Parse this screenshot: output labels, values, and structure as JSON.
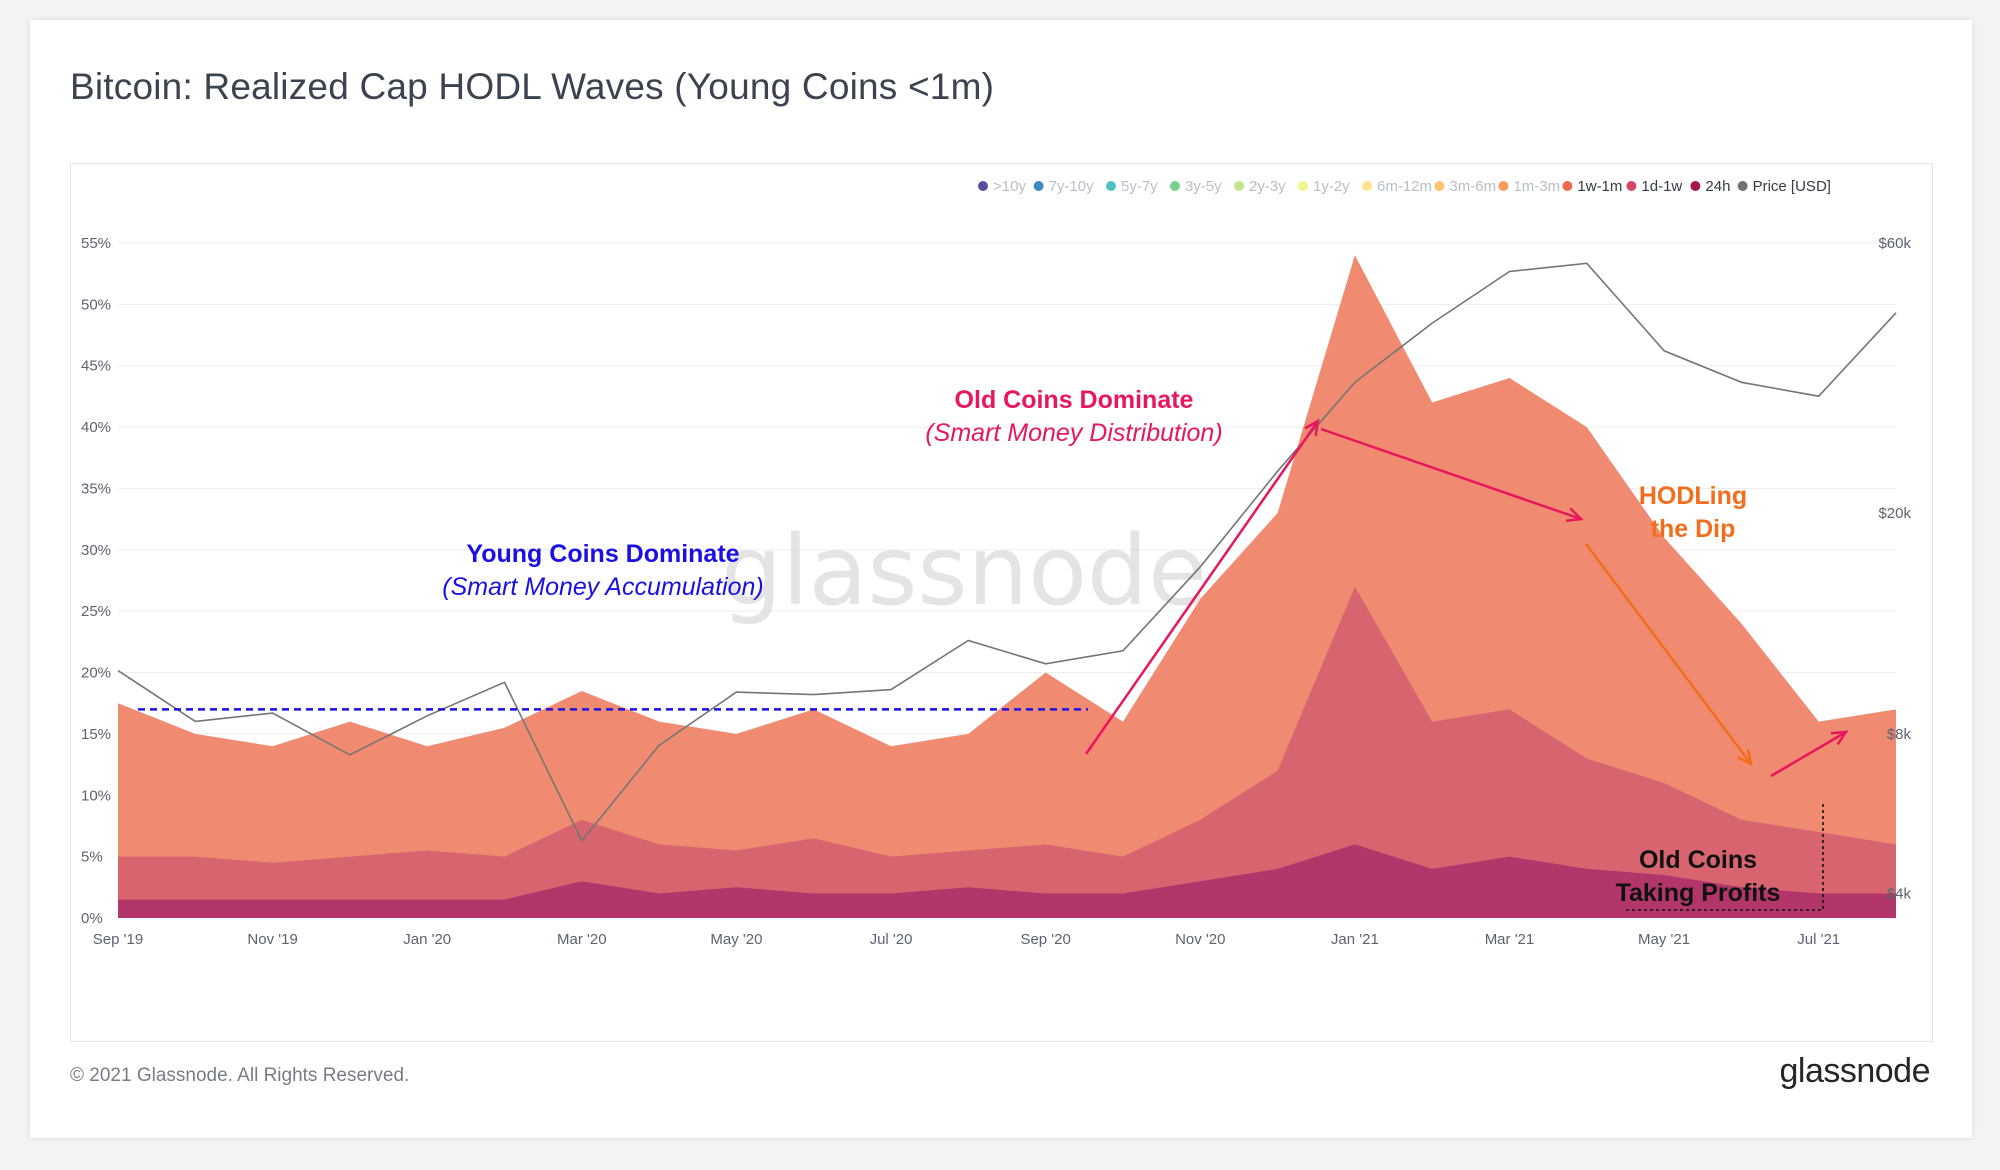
{
  "title": "Bitcoin: Realized Cap HODL Waves (Young Coins <1m)",
  "footer": {
    "copyright": "© 2021 Glassnode. All Rights Reserved.",
    "logo": "glassnode"
  },
  "watermark": "glassnode",
  "chart_data": {
    "type": "area",
    "x": [
      "2019-09",
      "2019-10",
      "2019-11",
      "2019-12",
      "2020-01",
      "2020-02",
      "2020-03",
      "2020-04",
      "2020-05",
      "2020-06",
      "2020-07",
      "2020-08",
      "2020-09",
      "2020-10",
      "2020-11",
      "2020-12",
      "2021-01",
      "2021-02",
      "2021-03",
      "2021-04",
      "2021-05",
      "2021-06",
      "2021-07",
      "2021-08"
    ],
    "xticks": [
      "Sep '19",
      "Nov '19",
      "Jan '20",
      "Mar '20",
      "May '20",
      "Jul '20",
      "Sep '20",
      "Nov '20",
      "Jan '21",
      "Mar '21",
      "May '21",
      "Jul '21"
    ],
    "yticks_left": [
      "0%",
      "5%",
      "10%",
      "15%",
      "20%",
      "25%",
      "30%",
      "35%",
      "40%",
      "45%",
      "50%",
      "55%"
    ],
    "yticks_right": [
      "$4k",
      "$8k",
      "$20k",
      "$60k"
    ],
    "ylim": [
      0,
      55
    ],
    "yscale_right": "log",
    "legend_position": "top-right",
    "legend": [
      {
        "name": ">10y",
        "color": "#5b4ea0",
        "faded": true
      },
      {
        "name": "7y-10y",
        "color": "#3b8bc2",
        "faded": true
      },
      {
        "name": "5y-7y",
        "color": "#4ec2c2",
        "faded": true
      },
      {
        "name": "3y-5y",
        "color": "#79cf8f",
        "faded": true
      },
      {
        "name": "2y-3y",
        "color": "#c2e68f",
        "faded": true
      },
      {
        "name": "1y-2y",
        "color": "#f3f58d",
        "faded": true
      },
      {
        "name": "6m-12m",
        "color": "#fde38d",
        "faded": true
      },
      {
        "name": "3m-6m",
        "color": "#fcc474",
        "faded": true
      },
      {
        "name": "1m-3m",
        "color": "#fa9c5c",
        "faded": true
      },
      {
        "name": "1w-1m",
        "color": "#ec6b4e",
        "faded": false
      },
      {
        "name": "1d-1w",
        "color": "#d64862",
        "faded": false
      },
      {
        "name": "24h",
        "color": "#a3174a",
        "faded": false
      },
      {
        "name": "Price [USD]",
        "color": "#707070",
        "faded": false
      }
    ],
    "series": [
      {
        "name": "1w-1m",
        "color": "#f08a70",
        "values": [
          17.5,
          15,
          14,
          16,
          14,
          15.5,
          18.5,
          16,
          15,
          17,
          14,
          15,
          20,
          16,
          26,
          33,
          54,
          42,
          44,
          40,
          31,
          24,
          16,
          17
        ]
      },
      {
        "name": "1d-1w",
        "color": "#d86470",
        "values": [
          5,
          5,
          4.5,
          5,
          5.5,
          5,
          8,
          6,
          5.5,
          6.5,
          5,
          5.5,
          6,
          5,
          8,
          12,
          27,
          16,
          17,
          13,
          11,
          8,
          7,
          6
        ]
      },
      {
        "name": "24h",
        "color": "#b2366a",
        "values": [
          1.5,
          1.5,
          1.5,
          1.5,
          1.5,
          1.5,
          3,
          2,
          2.5,
          2,
          2,
          2.5,
          2,
          2,
          3,
          4,
          6,
          4,
          5,
          4,
          3.5,
          2.5,
          2,
          2
        ]
      },
      {
        "name": "Price [USD]",
        "color": "#757575",
        "values": [
          10300,
          8300,
          8600,
          7200,
          8500,
          9800,
          5000,
          7500,
          9400,
          9300,
          9500,
          11700,
          10600,
          11200,
          16000,
          24000,
          35000,
          45000,
          56000,
          58000,
          40000,
          35000,
          33000,
          47000
        ]
      }
    ],
    "annotations": [
      {
        "title": "Young Coins Dominate",
        "subtitle": "(Smart Money Accumulation)",
        "color": "#1a10e6"
      },
      {
        "title": "Old Coins Dominate",
        "subtitle": "(Smart Money Distribution)",
        "color": "#e8175d"
      },
      {
        "title": "HODLing",
        "subtitle": "the Dip",
        "color": "#f26d1c"
      },
      {
        "title": "Old Coins",
        "subtitle": "Taking Profits",
        "color": "#111111"
      }
    ],
    "accumulation_level": 17
  }
}
